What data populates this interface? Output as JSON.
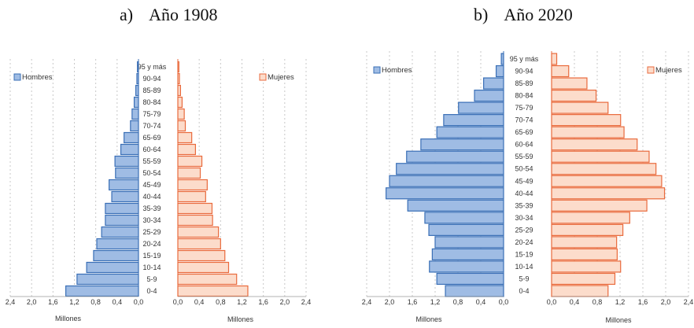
{
  "panels": [
    {
      "label": "a)",
      "title": "Año 1908"
    },
    {
      "label": "b)",
      "title": "Año 2020"
    }
  ],
  "colors": {
    "male_fill": "#9fbce4",
    "male_stroke": "#3a6fb6",
    "female_fill": "#fcdccb",
    "female_stroke": "#e96a3c",
    "grid": "#c8c8c8",
    "axis": "#9a9a9a"
  },
  "chart_data": [
    {
      "type": "bar",
      "orientation": "horizontal",
      "title": "Año 1908",
      "categories": [
        "0-4",
        "5-9",
        "10-14",
        "15-19",
        "20-24",
        "25-29",
        "30-34",
        "35-39",
        "40-44",
        "45-49",
        "50-54",
        "55-59",
        "60-64",
        "65-69",
        "70-74",
        "75-79",
        "80-84",
        "85-89",
        "90-94",
        "95 y más"
      ],
      "series": [
        {
          "name": "Hombres",
          "values": [
            1.36,
            1.15,
            0.97,
            0.84,
            0.78,
            0.69,
            0.62,
            0.62,
            0.5,
            0.55,
            0.43,
            0.44,
            0.33,
            0.27,
            0.15,
            0.12,
            0.08,
            0.05,
            0.03,
            0.02
          ]
        },
        {
          "name": "Mujeres",
          "values": [
            1.31,
            1.1,
            0.95,
            0.88,
            0.8,
            0.76,
            0.65,
            0.64,
            0.52,
            0.55,
            0.42,
            0.45,
            0.33,
            0.26,
            0.14,
            0.12,
            0.08,
            0.05,
            0.03,
            0.02
          ]
        }
      ],
      "xlabel_left": "Millones",
      "xlabel_right": "Millones",
      "xticks_left": [
        "2,4",
        "2,0",
        "1,6",
        "1,2",
        "0,8",
        "0,4",
        "0,0"
      ],
      "xticks_right": [
        "0,0",
        "0,4",
        "0,8",
        "1,2",
        "1,6",
        "2,0",
        "2,4"
      ],
      "xlim": [
        0,
        2.4
      ],
      "grid": true,
      "legend": [
        "Hombres",
        "Mujeres"
      ]
    },
    {
      "type": "bar",
      "orientation": "horizontal",
      "title": "Año 2020",
      "categories": [
        "0-4",
        "5-9",
        "10-14",
        "15-19",
        "20-24",
        "25-29",
        "30-34",
        "35-39",
        "40-44",
        "45-49",
        "50-54",
        "55-59",
        "60-64",
        "65-69",
        "70-74",
        "75-79",
        "80-84",
        "85-89",
        "90-94",
        "95 y más"
      ],
      "series": [
        {
          "name": "Hombres",
          "values": [
            1.02,
            1.17,
            1.3,
            1.25,
            1.2,
            1.31,
            1.38,
            1.68,
            2.06,
            2.0,
            1.88,
            1.7,
            1.45,
            1.17,
            1.05,
            0.79,
            0.51,
            0.35,
            0.13,
            0.04
          ]
        },
        {
          "name": "Mujeres",
          "values": [
            0.99,
            1.11,
            1.21,
            1.15,
            1.14,
            1.25,
            1.37,
            1.67,
            1.98,
            1.93,
            1.83,
            1.71,
            1.5,
            1.27,
            1.21,
            0.99,
            0.78,
            0.62,
            0.3,
            0.09
          ]
        }
      ],
      "xlabel_left": "Millones",
      "xlabel_right": "Millones",
      "xticks_left": [
        "2,4",
        "2,0",
        "1,6",
        "1,2",
        "0,8",
        "0,4",
        "0,0"
      ],
      "xticks_right": [
        "0,0",
        "0,4",
        "0,8",
        "1,2",
        "1,6",
        "2,0",
        "2,4"
      ],
      "xlim": [
        0,
        2.4
      ],
      "grid": true,
      "legend": [
        "Hombres",
        "Mujeres"
      ]
    }
  ]
}
